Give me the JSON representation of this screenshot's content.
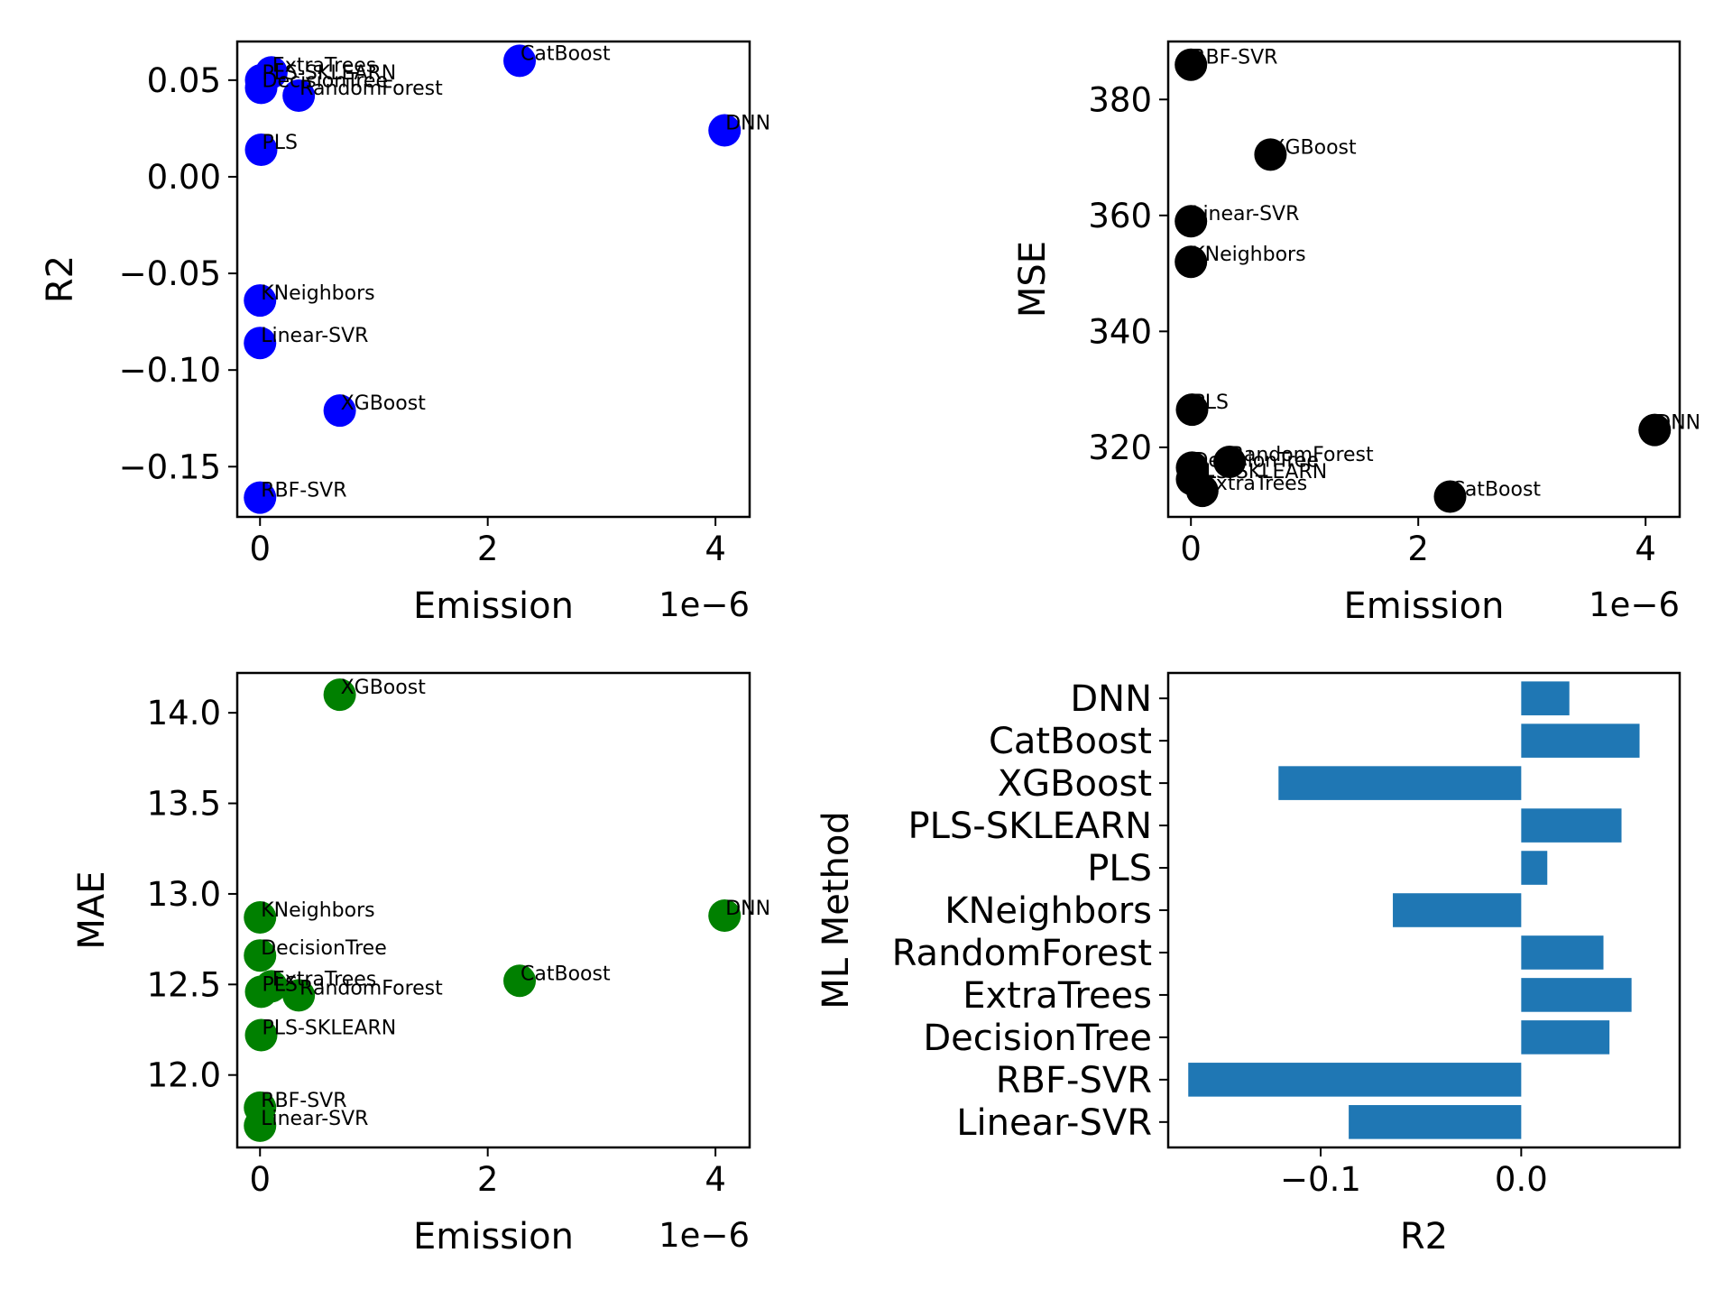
{
  "chart_data": [
    {
      "type": "scatter",
      "xlabel": "Emission",
      "ylabel": "R2",
      "x_offset_label": "1e−6",
      "color": "#0000ff",
      "xlim": [
        -0.2,
        4.3
      ],
      "ylim": [
        -0.176,
        0.07
      ],
      "xticks": [
        0,
        2,
        4
      ],
      "yticks": [
        -0.15,
        -0.1,
        -0.05,
        0.0,
        0.05
      ],
      "ytick_labels": [
        "−0.15",
        "−0.10",
        "−0.05",
        "0.00",
        "0.05"
      ],
      "points": [
        {
          "label": "ExtraTrees",
          "x": 0.1,
          "y": 0.054
        },
        {
          "label": "PLS-SKLEARN",
          "x": 0.01,
          "y": 0.05
        },
        {
          "label": "DecisionTree",
          "x": 0.01,
          "y": 0.046
        },
        {
          "label": "RandomForest",
          "x": 0.34,
          "y": 0.042
        },
        {
          "label": "CatBoost",
          "x": 2.28,
          "y": 0.06
        },
        {
          "label": "DNN",
          "x": 4.08,
          "y": 0.024
        },
        {
          "label": "PLS",
          "x": 0.01,
          "y": 0.014
        },
        {
          "label": "KNeighbors",
          "x": 0.0,
          "y": -0.064
        },
        {
          "label": "Linear-SVR",
          "x": 0.0,
          "y": -0.086
        },
        {
          "label": "XGBoost",
          "x": 0.7,
          "y": -0.121
        },
        {
          "label": "RBF-SVR",
          "x": 0.0,
          "y": -0.166
        }
      ]
    },
    {
      "type": "scatter",
      "xlabel": "Emission",
      "ylabel": "MSE",
      "x_offset_label": "1e−6",
      "color": "#000000",
      "xlim": [
        -0.2,
        4.3
      ],
      "ylim": [
        308,
        390
      ],
      "xticks": [
        0,
        2,
        4
      ],
      "yticks": [
        320,
        340,
        360,
        380
      ],
      "ytick_labels": [
        "320",
        "340",
        "360",
        "380"
      ],
      "points": [
        {
          "label": "RBF-SVR",
          "x": 0.0,
          "y": 386
        },
        {
          "label": "XGBoost",
          "x": 0.7,
          "y": 370.5
        },
        {
          "label": "Linear-SVR",
          "x": 0.0,
          "y": 359
        },
        {
          "label": "KNeighbors",
          "x": 0.0,
          "y": 352
        },
        {
          "label": "PLS",
          "x": 0.01,
          "y": 326.5
        },
        {
          "label": "DNN",
          "x": 4.08,
          "y": 323
        },
        {
          "label": "RandomForest",
          "x": 0.34,
          "y": 317.5
        },
        {
          "label": "DecisionTree",
          "x": 0.01,
          "y": 316.5
        },
        {
          "label": "PLS-SKLEARN",
          "x": 0.01,
          "y": 314.5
        },
        {
          "label": "ExtraTrees",
          "x": 0.1,
          "y": 312.5
        },
        {
          "label": "CatBoost",
          "x": 2.28,
          "y": 311.5
        }
      ]
    },
    {
      "type": "scatter",
      "xlabel": "Emission",
      "ylabel": "MAE",
      "x_offset_label": "1e−6",
      "color": "#008000",
      "xlim": [
        -0.2,
        4.3
      ],
      "ylim": [
        11.6,
        14.22
      ],
      "xticks": [
        0,
        2,
        4
      ],
      "yticks": [
        12.0,
        12.5,
        13.0,
        13.5,
        14.0
      ],
      "ytick_labels": [
        "12.0",
        "12.5",
        "13.0",
        "13.5",
        "14.0"
      ],
      "points": [
        {
          "label": "XGBoost",
          "x": 0.7,
          "y": 14.1
        },
        {
          "label": "KNeighbors",
          "x": 0.0,
          "y": 12.87
        },
        {
          "label": "DNN",
          "x": 4.08,
          "y": 12.88
        },
        {
          "label": "DecisionTree",
          "x": 0.0,
          "y": 12.66
        },
        {
          "label": "ExtraTrees",
          "x": 0.1,
          "y": 12.49
        },
        {
          "label": "CatBoost",
          "x": 2.28,
          "y": 12.52
        },
        {
          "label": "PLS",
          "x": 0.01,
          "y": 12.46
        },
        {
          "label": "RandomForest",
          "x": 0.34,
          "y": 12.44
        },
        {
          "label": "PLS-SKLEARN",
          "x": 0.01,
          "y": 12.22
        },
        {
          "label": "RBF-SVR",
          "x": 0.0,
          "y": 11.82
        },
        {
          "label": "Linear-SVR",
          "x": 0.0,
          "y": 11.72
        }
      ]
    },
    {
      "type": "bar",
      "orientation": "horizontal",
      "xlabel": "R2",
      "ylabel": "ML Method",
      "color": "#1f77b4",
      "xlim": [
        -0.176,
        0.079
      ],
      "xticks": [
        -0.1,
        0.0
      ],
      "xtick_labels": [
        "−0.1",
        "0.0"
      ],
      "categories": [
        "Linear-SVR",
        "RBF-SVR",
        "DecisionTree",
        "ExtraTrees",
        "RandomForest",
        "KNeighbors",
        "PLS",
        "PLS-SKLEARN",
        "XGBoost",
        "CatBoost",
        "DNN"
      ],
      "values": [
        -0.086,
        -0.166,
        0.044,
        0.055,
        0.041,
        -0.064,
        0.013,
        0.05,
        -0.121,
        0.059,
        0.024
      ]
    }
  ]
}
